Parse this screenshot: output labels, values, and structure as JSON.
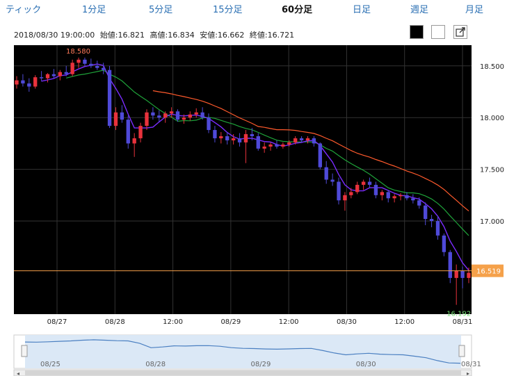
{
  "tabs": [
    "ティック",
    "1分足",
    "5分足",
    "15分足",
    "60分足",
    "日足",
    "週足",
    "月足"
  ],
  "active_tab": "60分足",
  "info": {
    "datetime": "2018/08/30 19:00:00",
    "open": "始値:16.821",
    "high": "高値:16.834",
    "low": "安値:16.662",
    "close": "終値:16.721"
  },
  "controls": {
    "black_bg_icon": "black-square",
    "white_bg_icon": "white-square",
    "expand_icon": "external-link-icon"
  },
  "chart_data": {
    "type": "candlestick",
    "y_ticks": [
      "18.500",
      "18.000",
      "17.500",
      "17.000"
    ],
    "ylim": [
      16.1,
      18.7
    ],
    "x_ticks": [
      "08/27",
      "08/28",
      "12:00",
      "08/29",
      "12:00",
      "08/30",
      "12:00",
      "08/31"
    ],
    "high_label": "18.580",
    "low_label": "16.192",
    "current_price": "16.519",
    "grid": true,
    "background": "#000000",
    "colors": {
      "up": "#e8323c",
      "down": "#4f4ad8",
      "ma_short": "#7a2cff",
      "ma_mid": "#1fa33a",
      "ma_long": "#ff5a2c",
      "price_line": "#f5a14a"
    },
    "ohlc": [
      [
        18.32,
        18.4,
        18.28,
        18.36
      ],
      [
        18.36,
        18.42,
        18.3,
        18.33
      ],
      [
        18.33,
        18.38,
        18.25,
        18.3
      ],
      [
        18.3,
        18.41,
        18.28,
        18.39
      ],
      [
        18.39,
        18.45,
        18.35,
        18.38
      ],
      [
        18.38,
        18.43,
        18.34,
        18.42
      ],
      [
        18.42,
        18.47,
        18.38,
        18.4
      ],
      [
        18.4,
        18.46,
        18.36,
        18.44
      ],
      [
        18.44,
        18.5,
        18.4,
        18.42
      ],
      [
        18.42,
        18.56,
        18.4,
        18.53
      ],
      [
        18.53,
        18.58,
        18.48,
        18.56
      ],
      [
        18.56,
        18.58,
        18.5,
        18.52
      ],
      [
        18.52,
        18.57,
        18.48,
        18.5
      ],
      [
        18.5,
        18.55,
        18.46,
        18.48
      ],
      [
        18.48,
        18.53,
        18.42,
        18.46
      ],
      [
        18.46,
        18.5,
        17.9,
        17.92
      ],
      [
        17.92,
        18.1,
        17.88,
        18.05
      ],
      [
        18.05,
        18.12,
        17.95,
        17.98
      ],
      [
        17.98,
        18.02,
        17.7,
        17.75
      ],
      [
        17.75,
        17.85,
        17.62,
        17.8
      ],
      [
        17.8,
        17.95,
        17.76,
        17.92
      ],
      [
        17.92,
        18.08,
        17.88,
        18.05
      ],
      [
        18.05,
        18.1,
        17.98,
        18.02
      ],
      [
        18.02,
        18.07,
        17.96,
        18.0
      ],
      [
        18.0,
        18.06,
        17.95,
        18.04
      ],
      [
        18.04,
        18.1,
        18.0,
        18.06
      ],
      [
        18.06,
        18.08,
        17.96,
        17.98
      ],
      [
        17.98,
        18.03,
        17.94,
        18.0
      ],
      [
        18.0,
        18.06,
        17.97,
        18.03
      ],
      [
        18.03,
        18.09,
        18.0,
        18.05
      ],
      [
        18.05,
        18.1,
        17.98,
        18.0
      ],
      [
        18.0,
        18.04,
        17.85,
        17.88
      ],
      [
        17.88,
        17.92,
        17.76,
        17.8
      ],
      [
        17.8,
        17.86,
        17.75,
        17.82
      ],
      [
        17.82,
        17.86,
        17.74,
        17.78
      ],
      [
        17.78,
        17.84,
        17.74,
        17.8
      ],
      [
        17.8,
        17.85,
        17.72,
        17.76
      ],
      [
        17.76,
        17.88,
        17.56,
        17.84
      ],
      [
        17.84,
        17.9,
        17.78,
        17.82
      ],
      [
        17.82,
        17.85,
        17.68,
        17.7
      ],
      [
        17.7,
        17.76,
        17.66,
        17.72
      ],
      [
        17.72,
        17.76,
        17.68,
        17.74
      ],
      [
        17.74,
        17.78,
        17.7,
        17.72
      ],
      [
        17.72,
        17.76,
        17.7,
        17.74
      ],
      [
        17.74,
        17.78,
        17.72,
        17.76
      ],
      [
        17.76,
        17.82,
        17.74,
        17.8
      ],
      [
        17.8,
        17.82,
        17.76,
        17.78
      ],
      [
        17.78,
        17.82,
        17.75,
        17.8
      ],
      [
        17.8,
        17.82,
        17.72,
        17.75
      ],
      [
        17.75,
        17.76,
        17.5,
        17.52
      ],
      [
        17.52,
        17.58,
        17.36,
        17.4
      ],
      [
        17.4,
        17.46,
        17.34,
        17.38
      ],
      [
        17.38,
        17.42,
        17.16,
        17.2
      ],
      [
        17.2,
        17.28,
        17.1,
        17.25
      ],
      [
        17.25,
        17.32,
        17.22,
        17.28
      ],
      [
        17.28,
        17.38,
        17.26,
        17.35
      ],
      [
        17.35,
        17.4,
        17.3,
        17.38
      ],
      [
        17.38,
        17.42,
        17.32,
        17.35
      ],
      [
        17.35,
        17.38,
        17.22,
        17.25
      ],
      [
        17.25,
        17.3,
        17.2,
        17.28
      ],
      [
        17.28,
        17.3,
        17.18,
        17.22
      ],
      [
        17.22,
        17.26,
        17.18,
        17.24
      ],
      [
        17.24,
        17.27,
        17.2,
        17.25
      ],
      [
        17.25,
        17.28,
        17.2,
        17.22
      ],
      [
        17.22,
        17.26,
        17.17,
        17.2
      ],
      [
        17.2,
        17.23,
        17.12,
        17.15
      ],
      [
        17.15,
        17.18,
        16.96,
        17.02
      ],
      [
        17.02,
        17.06,
        16.94,
        17.0
      ],
      [
        17.0,
        17.05,
        16.82,
        16.86
      ],
      [
        16.86,
        16.88,
        16.66,
        16.7
      ],
      [
        16.7,
        16.72,
        16.4,
        16.45
      ],
      [
        16.45,
        16.58,
        16.19,
        16.52
      ],
      [
        16.52,
        16.56,
        16.35,
        16.45
      ],
      [
        16.45,
        16.55,
        16.4,
        16.5
      ]
    ]
  },
  "navigator": {
    "labels": [
      "08/25",
      "08/28",
      "08/29",
      "08/30",
      "08/31"
    ],
    "series": [
      18.36,
      18.35,
      18.38,
      18.42,
      18.46,
      18.52,
      18.56,
      18.52,
      18.48,
      18.46,
      18.25,
      17.85,
      17.92,
      18.02,
      18.0,
      18.03,
      18.04,
      17.98,
      17.86,
      17.8,
      17.78,
      17.74,
      17.72,
      17.75,
      17.78,
      17.79,
      17.6,
      17.38,
      17.22,
      17.3,
      17.36,
      17.28,
      17.24,
      17.22,
      17.1,
      16.96,
      16.7,
      16.5,
      16.47
    ]
  }
}
